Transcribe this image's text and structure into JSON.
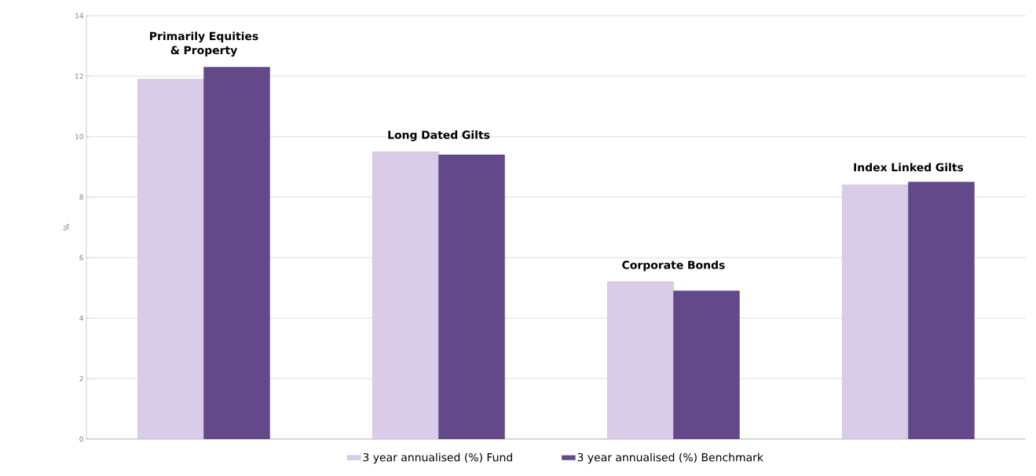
{
  "chart_data": {
    "type": "bar",
    "ylabel": "%",
    "categories": [
      "Primarily Equities & Property",
      "Long Dated Gilts",
      "Corporate Bonds",
      "Index Linked Gilts"
    ],
    "series": [
      {
        "name": "3 year annualised (%) Fund",
        "color": "#d9cce8",
        "values": [
          11.9,
          9.5,
          5.2,
          8.4
        ]
      },
      {
        "name": "3 year annualised (%) Benchmark",
        "color": "#63488a",
        "values": [
          12.3,
          9.4,
          4.9,
          8.5
        ]
      }
    ],
    "ylim": [
      0,
      14
    ],
    "yticks": [
      0,
      2,
      4,
      6,
      8,
      10,
      12,
      14
    ],
    "grid": "y",
    "legend": "bottom"
  }
}
